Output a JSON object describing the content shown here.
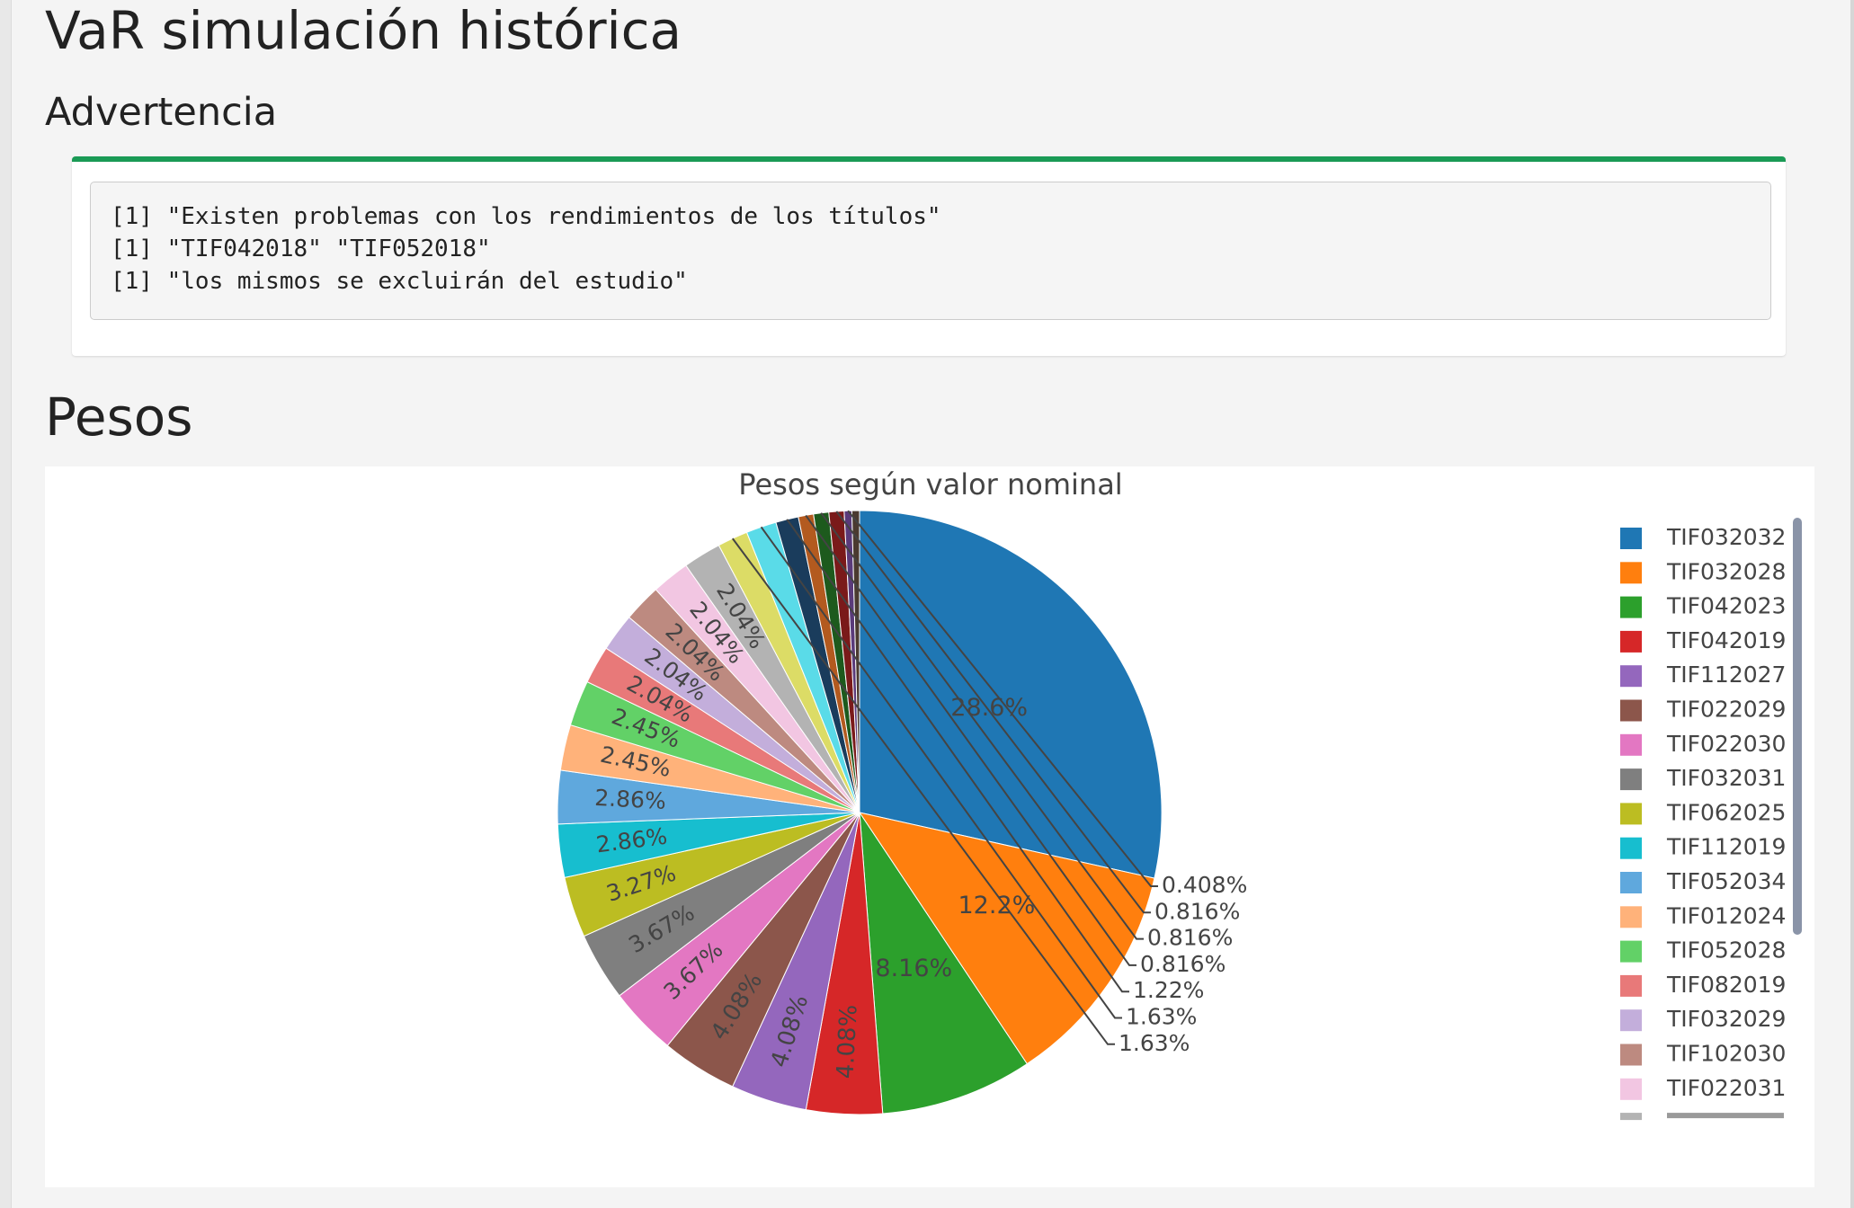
{
  "page": {
    "title": "VaR simulación histórica",
    "warning_heading": "Advertencia",
    "warning_lines": [
      "[1] \"Existen problemas con los rendimientos de los títulos\"",
      "[1] \"TIF042018\" \"TIF052018\"",
      "[1] \"los mismos se excluirán del estudio\""
    ],
    "pesos_heading": "Pesos"
  },
  "colors": {
    "warning_accent": "#1a9a55",
    "legend_scrollbar": "#8a94a8"
  },
  "chart_data": {
    "type": "pie",
    "title": "Pesos según valor nominal",
    "legend_position": "right",
    "labels": [
      "TIF032032",
      "TIF032028",
      "TIF042023",
      "TIF042019",
      "TIF112027",
      "TIF022029",
      "TIF022030",
      "TIF032031",
      "TIF062025",
      "TIF112019",
      "TIF052034",
      "TIF012024",
      "TIF052028",
      "TIF082019",
      "TIF032029",
      "TIF102030",
      "TIF022031",
      "",
      "",
      "",
      "",
      "",
      "",
      "",
      "",
      ""
    ],
    "values": [
      28.6,
      12.2,
      8.16,
      4.08,
      4.08,
      4.08,
      3.67,
      3.67,
      3.27,
      2.86,
      2.86,
      2.45,
      2.45,
      2.04,
      2.04,
      2.04,
      2.04,
      2.04,
      1.63,
      1.63,
      1.22,
      0.816,
      0.816,
      0.816,
      0.408,
      0.408
    ],
    "text_labels": [
      "28.6%",
      "12.2%",
      "8.16%",
      "4.08%",
      "4.08%",
      "4.08%",
      "3.67%",
      "3.67%",
      "3.27%",
      "2.86%",
      "2.86%",
      "2.45%",
      "2.45%",
      "2.04%",
      "2.04%",
      "2.04%",
      "2.04%",
      "2.04%",
      "1.63%",
      "1.63%",
      "1.22%",
      "0.816%",
      "0.816%",
      "0.816%",
      "0.408%",
      ""
    ],
    "colors": [
      "#1f77b4",
      "#ff7f0e",
      "#2ca02c",
      "#d62728",
      "#9467bd",
      "#8c564b",
      "#e377c2",
      "#7f7f7f",
      "#bcbd22",
      "#17becf",
      "#5fa8dd",
      "#ffb27a",
      "#62d167",
      "#e87979",
      "#c3aedb",
      "#bd8a80",
      "#f2c6e2",
      "#b3b3b3",
      "#dcdc66",
      "#5adbe8",
      "#1a3c5c",
      "#b35a1f",
      "#1d5a1d",
      "#7a1a1a",
      "#5a3a7a",
      "#4a3a30"
    ],
    "visible_legend_count": 17
  }
}
